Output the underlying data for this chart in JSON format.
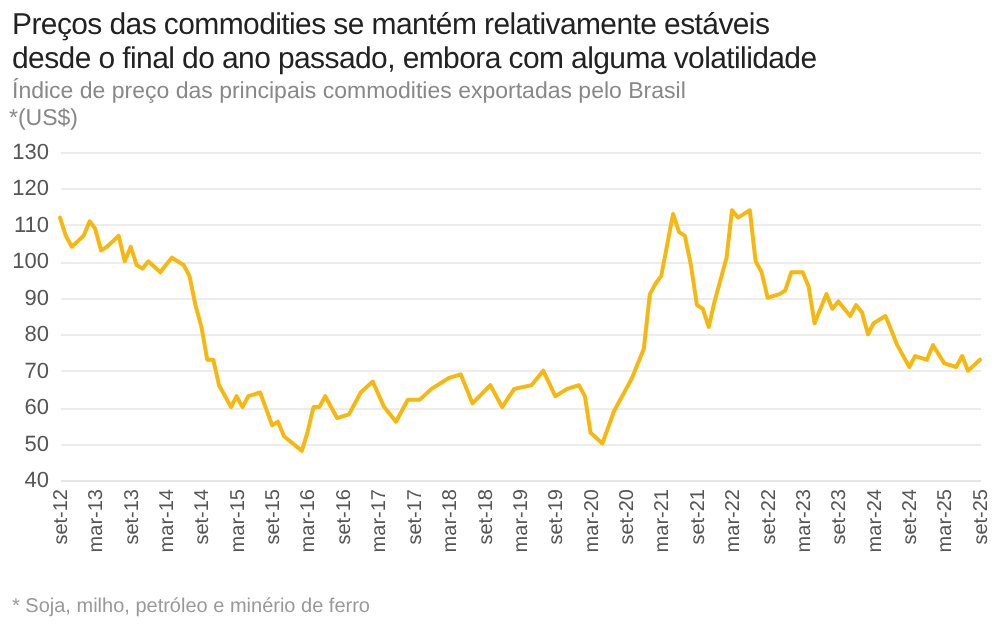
{
  "chart_data": {
    "type": "line",
    "title": "Preços das commodities se mantém relativamente estáveis desde o final do ano passado, embora com alguma volatilidade",
    "subtitle": "Índice de preço das principais commodities exportadas pelo Brasil",
    "ylabel": "*(US$)",
    "annotations": [
      "* Soja, milho, petróleo e minério de ferro"
    ],
    "x": [
      "2012-09",
      "2012-10",
      "2012-11",
      "2013-01",
      "2013-02",
      "2013-03",
      "2013-04",
      "2013-05",
      "2013-07",
      "2013-08",
      "2013-09",
      "2013-10",
      "2013-11",
      "2013-12",
      "2014-02",
      "2014-03",
      "2014-04",
      "2014-06",
      "2014-07",
      "2014-08",
      "2014-09",
      "2014-10",
      "2014-11",
      "2014-12",
      "2015-02",
      "2015-03",
      "2015-04",
      "2015-05",
      "2015-07",
      "2015-09",
      "2015-10",
      "2015-11",
      "2016-02",
      "2016-03",
      "2016-04",
      "2016-05",
      "2016-06",
      "2016-08",
      "2016-10",
      "2016-12",
      "2017-02",
      "2017-04",
      "2017-06",
      "2017-08",
      "2017-10",
      "2017-12",
      "2018-03",
      "2018-05",
      "2018-07",
      "2018-10",
      "2018-12",
      "2019-02",
      "2019-05",
      "2019-07",
      "2019-09",
      "2019-11",
      "2020-01",
      "2020-02",
      "2020-03",
      "2020-05",
      "2020-07",
      "2020-09",
      "2020-10",
      "2020-12",
      "2021-01",
      "2021-02",
      "2021-03",
      "2021-05",
      "2021-06",
      "2021-07",
      "2021-08",
      "2021-09",
      "2021-10",
      "2021-11",
      "2021-12",
      "2022-02",
      "2022-03",
      "2022-04",
      "2022-06",
      "2022-07",
      "2022-08",
      "2022-09",
      "2022-11",
      "2022-12",
      "2023-01",
      "2023-03",
      "2023-04",
      "2023-05",
      "2023-07",
      "2023-08",
      "2023-09",
      "2023-11",
      "2023-12",
      "2024-01",
      "2024-02",
      "2024-03",
      "2024-05",
      "2024-06",
      "2024-07",
      "2024-09",
      "2024-10",
      "2024-12",
      "2025-01",
      "2025-03",
      "2025-05",
      "2025-06",
      "2025-07",
      "2025-09"
    ],
    "series": [
      {
        "color": "#f6b70f",
        "values": [
          112,
          107,
          104,
          107,
          111,
          109,
          103,
          104,
          107,
          100,
          104,
          99,
          98,
          100,
          97,
          99,
          101,
          99,
          96,
          88,
          82,
          73,
          73,
          66,
          60,
          63,
          60,
          63,
          64,
          55,
          56,
          52,
          48,
          53,
          60,
          60,
          63,
          57,
          58,
          64,
          67,
          60,
          56,
          62,
          62,
          65,
          68,
          69,
          61,
          66,
          60,
          65,
          66,
          70,
          63,
          65,
          66,
          63,
          53,
          50,
          59,
          65,
          68,
          76,
          91,
          94,
          96,
          113,
          108,
          107,
          99,
          88,
          87,
          82,
          89,
          101,
          114,
          112,
          114,
          100,
          97,
          90,
          91,
          92,
          97,
          97,
          93,
          83,
          91,
          87,
          89,
          85,
          88,
          86,
          80,
          83,
          85,
          81,
          77,
          71,
          74,
          73,
          77,
          72,
          71,
          74,
          70,
          73
        ]
      }
    ],
    "xlim": [
      "2012-09",
      "2025-09"
    ],
    "ylim": [
      40,
      130
    ],
    "xticks": [
      {
        "value": "2012-09",
        "label": "set-12"
      },
      {
        "value": "2013-03",
        "label": "mar-13"
      },
      {
        "value": "2013-09",
        "label": "set-13"
      },
      {
        "value": "2014-03",
        "label": "mar-14"
      },
      {
        "value": "2014-09",
        "label": "set-14"
      },
      {
        "value": "2015-03",
        "label": "mar-15"
      },
      {
        "value": "2015-09",
        "label": "set-15"
      },
      {
        "value": "2016-03",
        "label": "mar-16"
      },
      {
        "value": "2016-09",
        "label": "set-16"
      },
      {
        "value": "2017-03",
        "label": "mar-17"
      },
      {
        "value": "2017-09",
        "label": "set-17"
      },
      {
        "value": "2018-03",
        "label": "mar-18"
      },
      {
        "value": "2018-09",
        "label": "set-18"
      },
      {
        "value": "2019-03",
        "label": "mar-19"
      },
      {
        "value": "2019-09",
        "label": "set-19"
      },
      {
        "value": "2020-03",
        "label": "mar-20"
      },
      {
        "value": "2020-09",
        "label": "set-20"
      },
      {
        "value": "2021-03",
        "label": "mar-21"
      },
      {
        "value": "2021-09",
        "label": "set-21"
      },
      {
        "value": "2022-03",
        "label": "mar-22"
      },
      {
        "value": "2022-09",
        "label": "set-22"
      },
      {
        "value": "2023-03",
        "label": "mar-23"
      },
      {
        "value": "2023-09",
        "label": "set-23"
      },
      {
        "value": "2024-03",
        "label": "mar-24"
      },
      {
        "value": "2024-09",
        "label": "set-24"
      },
      {
        "value": "2025-03",
        "label": "mar-25"
      },
      {
        "value": "2025-09",
        "label": "set-25"
      }
    ],
    "yticks": [
      40,
      50,
      60,
      70,
      80,
      90,
      100,
      110,
      120,
      130
    ],
    "grid": "y"
  }
}
